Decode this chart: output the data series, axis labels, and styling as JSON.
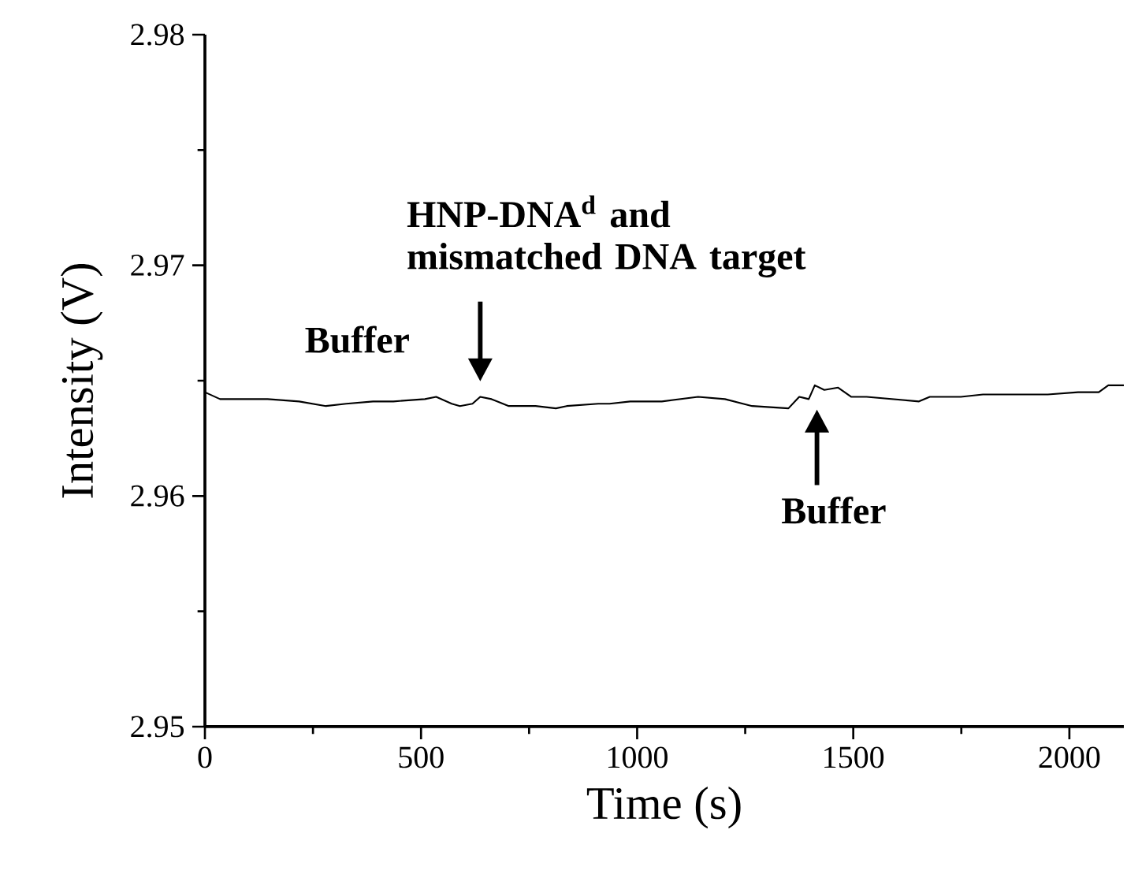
{
  "chart_data": {
    "type": "line",
    "xlabel": "Time (s)",
    "ylabel": "Intensity (V)",
    "xlim": [
      0,
      2126
    ],
    "ylim": [
      2.95,
      2.98
    ],
    "xticks": [
      0,
      500,
      1000,
      1500,
      2000
    ],
    "yticks": [
      2.95,
      2.96,
      2.97,
      2.98
    ],
    "x": [
      0,
      35,
      72,
      145,
      218,
      280,
      327,
      389,
      436,
      509,
      535,
      571,
      590,
      619,
      637,
      663,
      703,
      765,
      812,
      837,
      910,
      936,
      984,
      1021,
      1057,
      1141,
      1203,
      1266,
      1350,
      1375,
      1397,
      1411,
      1433,
      1465,
      1495,
      1531,
      1652,
      1677,
      1749,
      1800,
      1871,
      1950,
      2020,
      2068,
      2090,
      2126
    ],
    "series": [
      {
        "color": "#000000",
        "values": [
          2.9645,
          2.9642,
          2.9642,
          2.9642,
          2.9641,
          2.9639,
          2.964,
          2.9641,
          2.9641,
          2.9642,
          2.9643,
          2.964,
          2.9639,
          2.964,
          2.9643,
          2.9642,
          2.9639,
          2.9639,
          2.9638,
          2.9639,
          2.964,
          2.964,
          2.9641,
          2.9641,
          2.9641,
          2.9643,
          2.9642,
          2.9639,
          2.9638,
          2.9643,
          2.9642,
          2.9648,
          2.9646,
          2.9647,
          2.9643,
          2.9643,
          2.9641,
          2.9643,
          2.9643,
          2.9644,
          2.9644,
          2.9644,
          2.9645,
          2.9645,
          2.9648,
          2.9648
        ]
      }
    ],
    "annotations": [
      "Buffer",
      {
        "text": "HNP-DNA$^{d}$ and mismatched DNA target",
        "x": 637,
        "y": 2.9646
      },
      {
        "text": "Buffer",
        "x": 1416,
        "y": 2.9643
      }
    ],
    "grid": false,
    "marker": "none",
    "line_style": "solid"
  }
}
